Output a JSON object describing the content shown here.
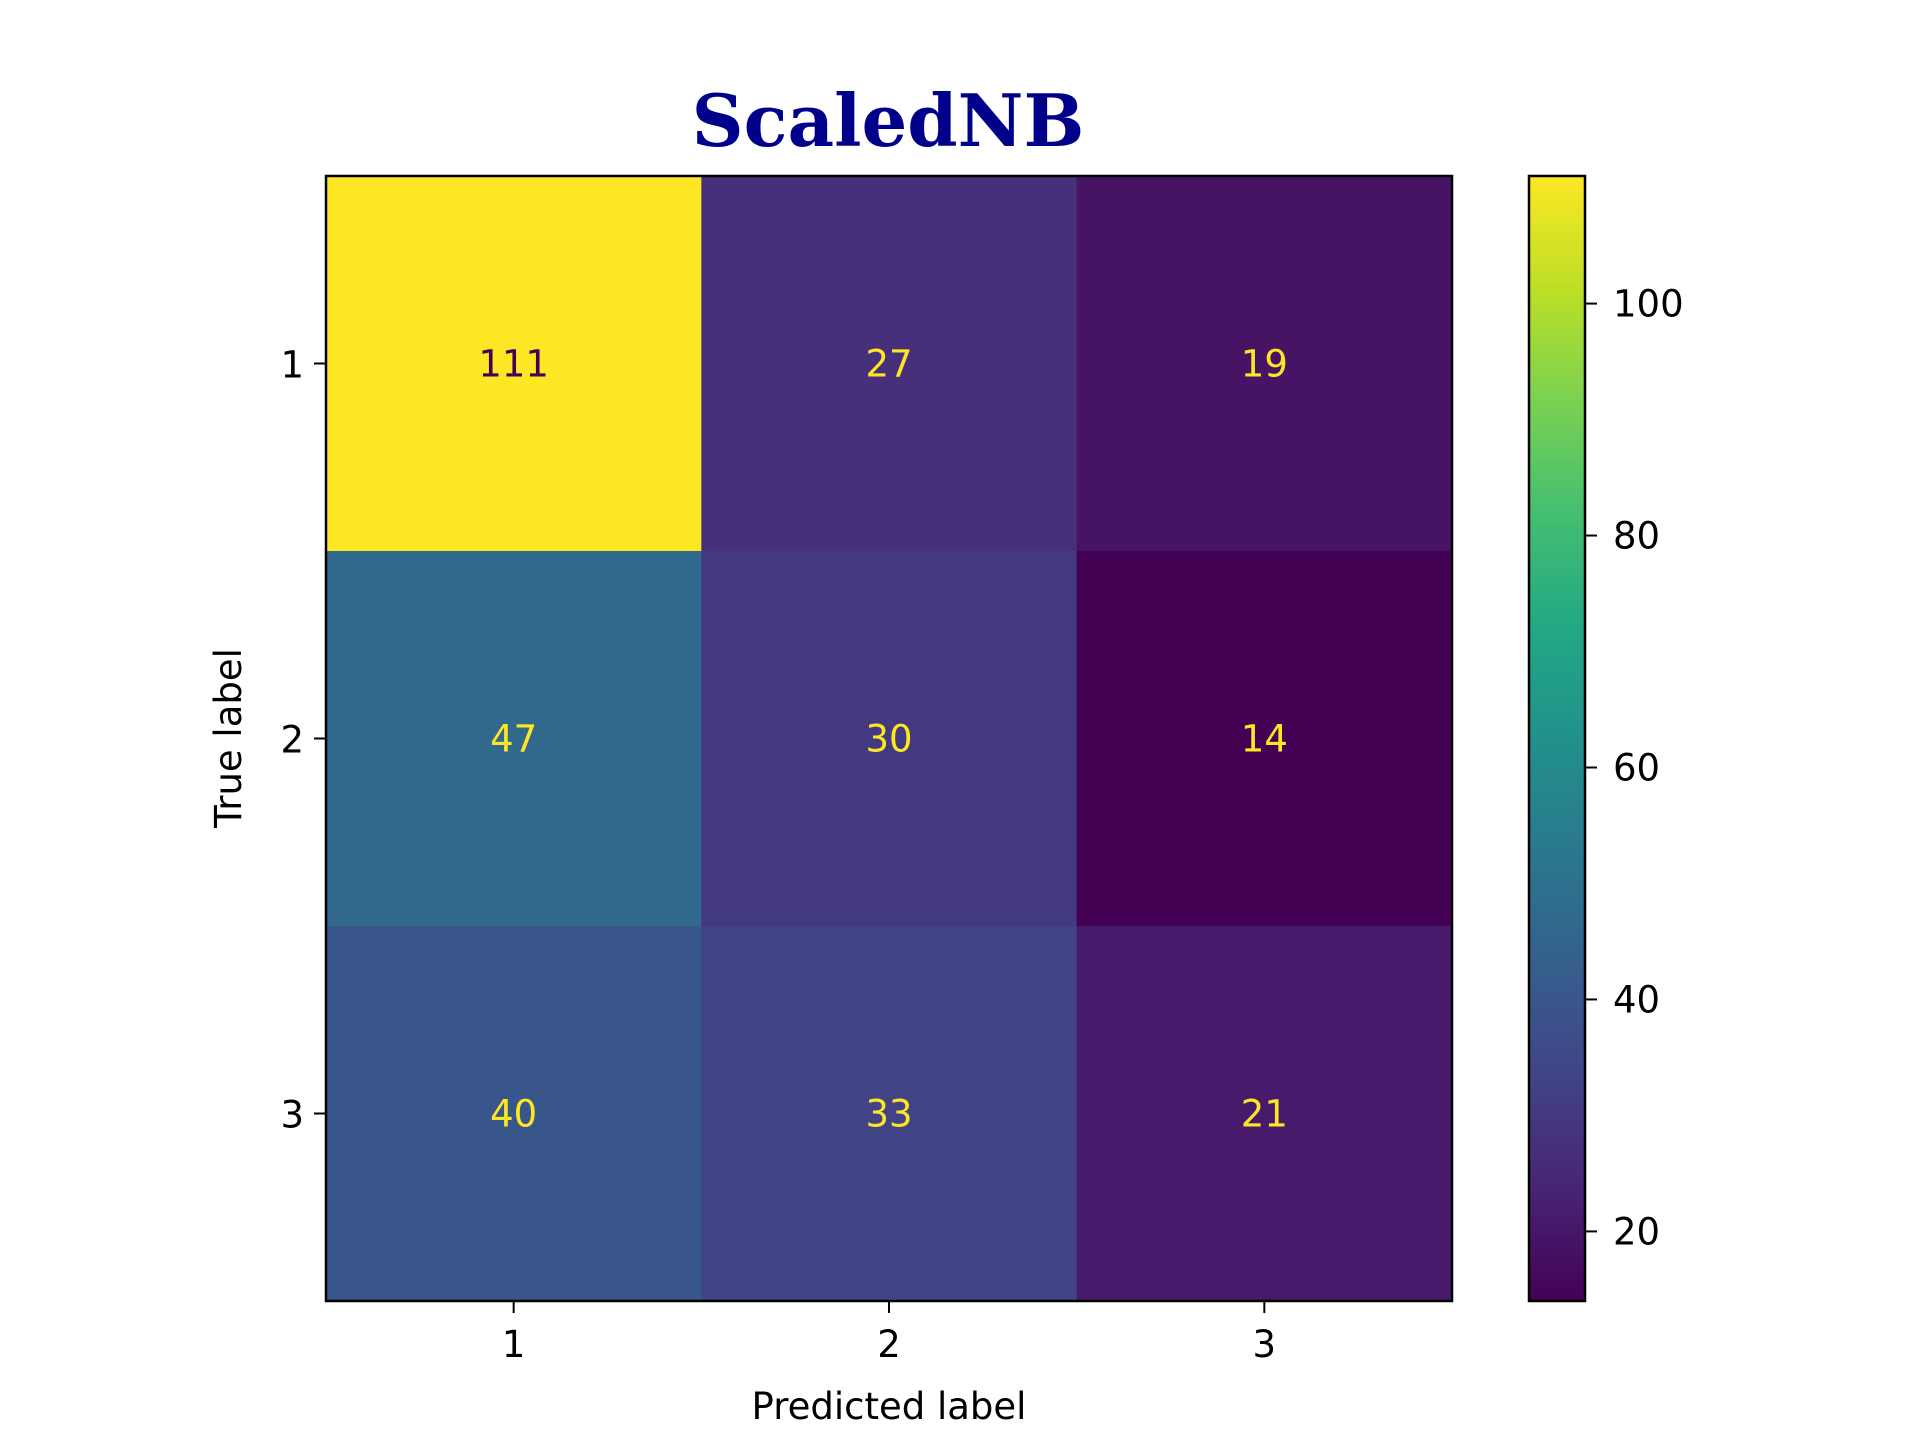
{
  "chart_data": {
    "type": "heatmap",
    "title": "ScaledNB",
    "xlabel": "Predicted label",
    "ylabel": "True label",
    "x_categories": [
      "1",
      "2",
      "3"
    ],
    "y_categories": [
      "1",
      "2",
      "3"
    ],
    "values": [
      [
        111,
        27,
        19
      ],
      [
        47,
        30,
        14
      ],
      [
        40,
        33,
        21
      ]
    ],
    "colormap": "viridis",
    "colorbar": {
      "range": [
        14,
        111
      ],
      "ticks": [
        20,
        40,
        60,
        80,
        100
      ],
      "tick_labels": [
        "20",
        "40",
        "60",
        "80",
        "100"
      ]
    },
    "grid": false,
    "colors": {
      "title": "#00008b",
      "text_on_dark": "#fde725",
      "text_on_light": "#440154"
    }
  }
}
